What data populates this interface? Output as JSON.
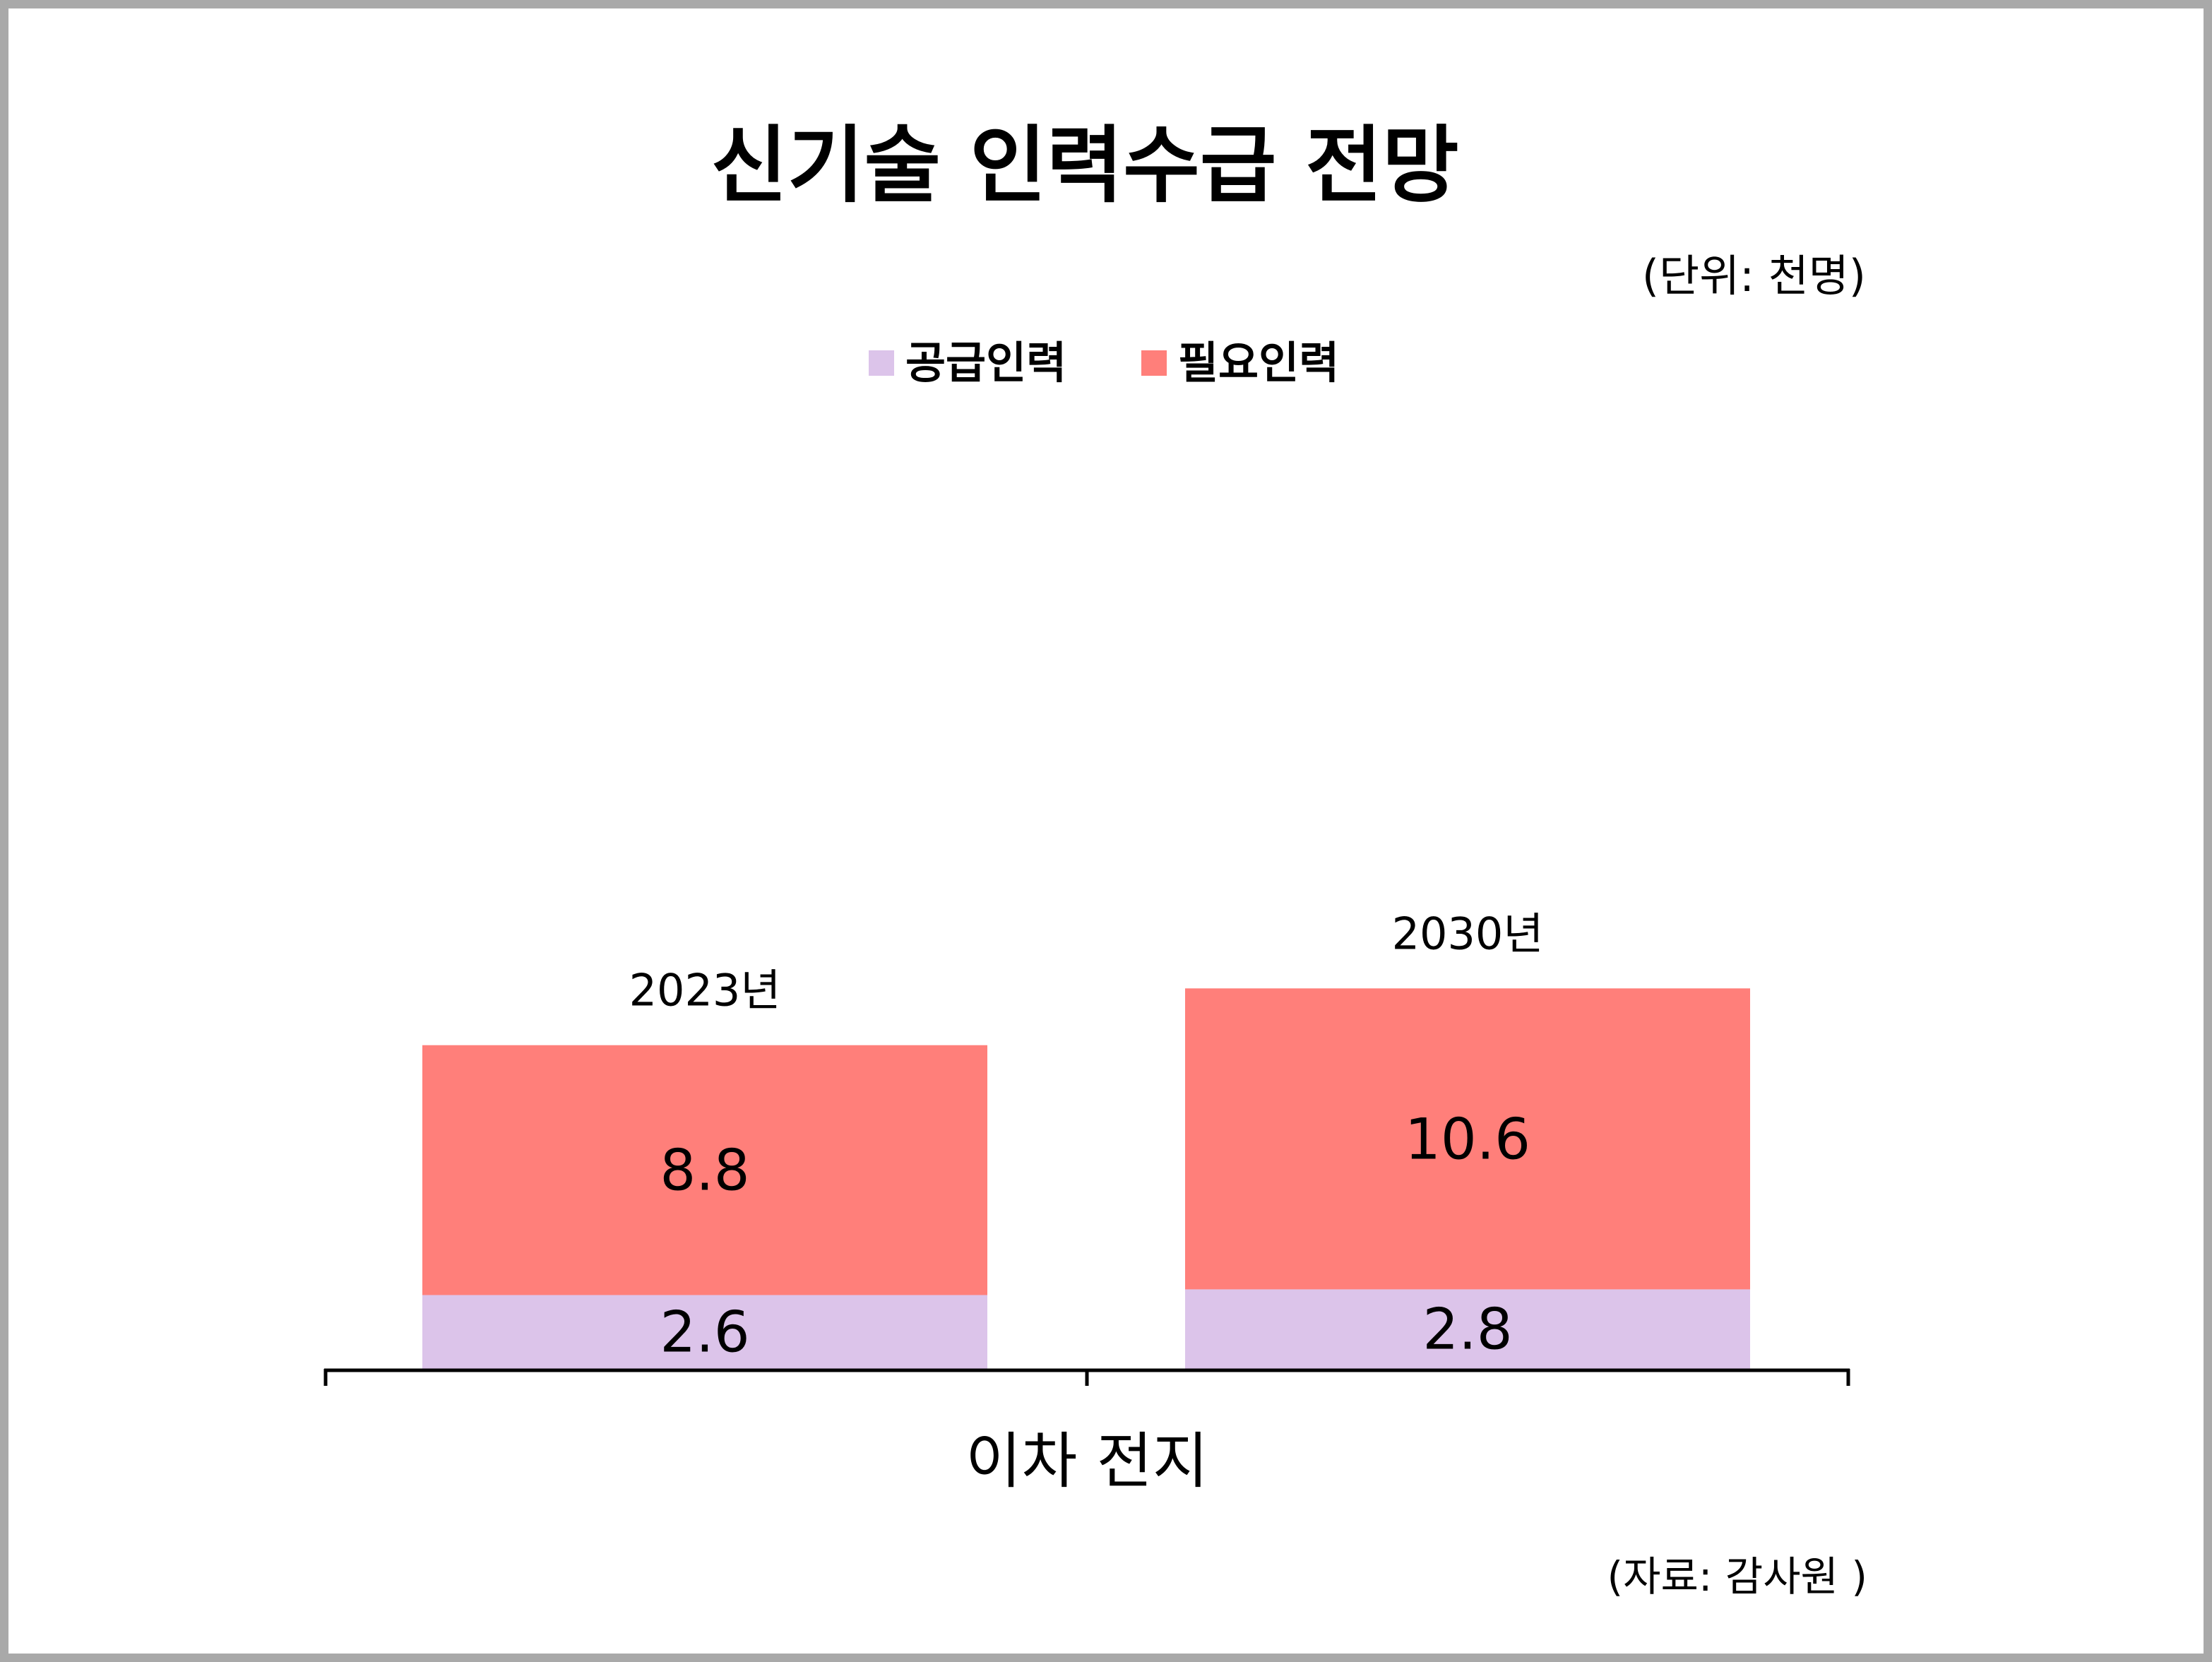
{
  "chart_data": {
    "type": "bar",
    "stacked": true,
    "title": "신기술 인력수급 전망",
    "unit": "(단위: 천명)",
    "source": "(자료: 감사원 )",
    "xlabel": "이차 전지",
    "categories": [
      "2023년",
      "2030년"
    ],
    "series": [
      {
        "name": "공급인력",
        "values": [
          2.6,
          2.8
        ],
        "color": "#dcc4ea"
      },
      {
        "name": "필요인력",
        "values": [
          8.8,
          10.6
        ],
        "color": "#ff7f7a"
      }
    ],
    "legend_position": "top",
    "grid": false
  }
}
